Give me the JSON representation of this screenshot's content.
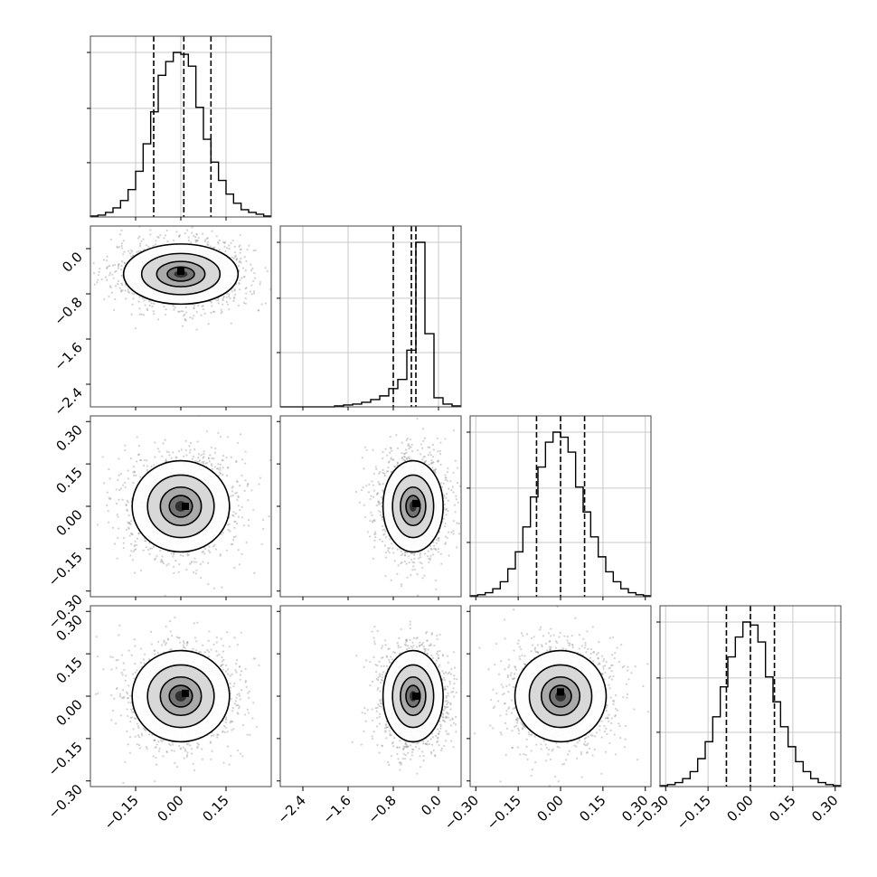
{
  "chart_data": {
    "type": "corner",
    "parameters": [
      {
        "id": "p0",
        "lim": [
          -0.3,
          0.3
        ],
        "ticks": [
          -0.15,
          0.0,
          0.15
        ],
        "tick_labels": [
          "−0.15",
          "0.00",
          "0.15"
        ],
        "quantiles": [
          -0.09,
          0.01,
          0.1
        ]
      },
      {
        "id": "p1",
        "lim": [
          -2.8,
          0.4
        ],
        "ticks": [
          -2.4,
          -1.6,
          -0.8,
          0.0
        ],
        "tick_labels": [
          "−2.4",
          "−1.6",
          "−0.8",
          "0.0"
        ],
        "quantiles": [
          -0.8,
          -0.48,
          -0.4
        ]
      },
      {
        "id": "p2",
        "lim": [
          -0.32,
          0.32
        ],
        "ticks": [
          -0.3,
          -0.15,
          0.0,
          0.15,
          0.3
        ],
        "tick_labels": [
          "−0.30",
          "−0.15",
          "0.00",
          "0.15",
          "0.30"
        ],
        "quantiles": [
          -0.085,
          0.0,
          0.085
        ]
      },
      {
        "id": "p3",
        "lim": [
          -0.32,
          0.32
        ],
        "ticks": [
          -0.3,
          -0.15,
          0.0,
          0.15,
          0.3
        ],
        "tick_labels": [
          "−0.30",
          "−0.15",
          "0.00",
          "0.15",
          "0.30"
        ],
        "quantiles": [
          -0.085,
          0.0,
          0.085
        ]
      }
    ],
    "histograms": [
      {
        "param": "p0",
        "counts": [
          1,
          2,
          5,
          10,
          18,
          30,
          50,
          80,
          115,
          155,
          170,
          180,
          178,
          165,
          120,
          85,
          60,
          40,
          25,
          15,
          8,
          5,
          3,
          1
        ]
      },
      {
        "param": "p1",
        "counts": [
          0,
          0,
          0,
          0,
          0,
          0,
          1,
          2,
          3,
          5,
          8,
          12,
          20,
          30,
          62,
          180,
          80,
          10,
          3,
          1
        ]
      },
      {
        "param": "p2",
        "counts": [
          1,
          2,
          4,
          8,
          15,
          28,
          45,
          70,
          100,
          130,
          155,
          165,
          160,
          145,
          110,
          85,
          60,
          40,
          25,
          15,
          8,
          4,
          2,
          1
        ]
      },
      {
        "param": "p3",
        "counts": [
          1,
          2,
          4,
          8,
          15,
          28,
          45,
          70,
          100,
          130,
          150,
          165,
          162,
          145,
          110,
          85,
          60,
          40,
          25,
          15,
          8,
          4,
          2,
          1
        ]
      }
    ],
    "scatter_2d": [
      {
        "x": "p0",
        "y": "p1",
        "center": [
          0.0,
          -0.45
        ],
        "spread": [
          0.1,
          0.28
        ],
        "peak": [
          0.0,
          -0.4
        ]
      },
      {
        "x": "p0",
        "y": "p2",
        "center": [
          0.0,
          0.0
        ],
        "spread": [
          0.085,
          0.085
        ],
        "peak": [
          0.015,
          0.0
        ]
      },
      {
        "x": "p1",
        "y": "p2",
        "center": [
          -0.45,
          0.0
        ],
        "spread": [
          0.28,
          0.085
        ],
        "peak": [
          -0.4,
          0.01
        ]
      },
      {
        "x": "p0",
        "y": "p3",
        "center": [
          0.0,
          0.0
        ],
        "spread": [
          0.085,
          0.085
        ],
        "peak": [
          0.015,
          0.01
        ]
      },
      {
        "x": "p1",
        "y": "p3",
        "center": [
          -0.45,
          0.0
        ],
        "spread": [
          0.28,
          0.085
        ],
        "peak": [
          -0.4,
          0.0
        ]
      },
      {
        "x": "p2",
        "y": "p3",
        "center": [
          0.0,
          0.0
        ],
        "spread": [
          0.085,
          0.085
        ],
        "peak": [
          0.0,
          0.015
        ]
      }
    ],
    "grid": true,
    "contour_color": "#000000",
    "scatter_color": "#9a9a9a",
    "hist_color": "#000000"
  }
}
